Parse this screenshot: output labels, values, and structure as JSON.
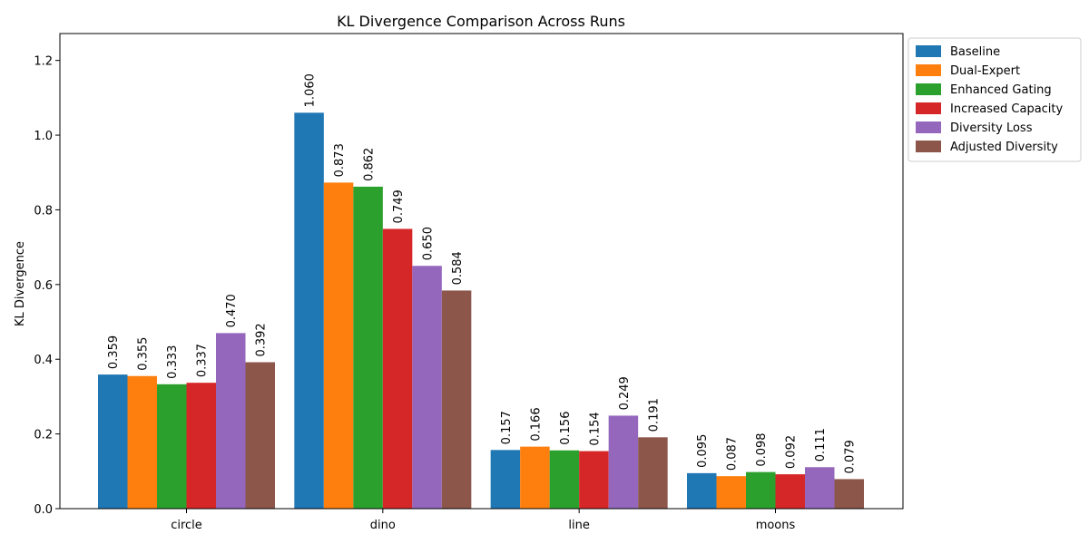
{
  "chart_data": {
    "type": "bar",
    "title": "KL Divergence Comparison Across Runs",
    "xlabel": "",
    "ylabel": "KL Divergence",
    "ylim": [
      0,
      1.272
    ],
    "yticks": [
      "0.0",
      "0.2",
      "0.4",
      "0.6",
      "0.8",
      "1.0",
      "1.2"
    ],
    "categories": [
      "circle",
      "dino",
      "line",
      "moons"
    ],
    "legend_position": "outside-top-right",
    "grid": false,
    "series": [
      {
        "name": "Baseline",
        "color": "#1f77b4",
        "values": [
          0.359,
          1.06,
          0.157,
          0.095
        ],
        "labels": [
          "0.359",
          "1.060",
          "0.157",
          "0.095"
        ]
      },
      {
        "name": "Dual-Expert",
        "color": "#ff7f0e",
        "values": [
          0.355,
          0.873,
          0.166,
          0.087
        ],
        "labels": [
          "0.355",
          "0.873",
          "0.166",
          "0.087"
        ]
      },
      {
        "name": "Enhanced Gating",
        "color": "#2ca02c",
        "values": [
          0.333,
          0.862,
          0.156,
          0.098
        ],
        "labels": [
          "0.333",
          "0.862",
          "0.156",
          "0.098"
        ]
      },
      {
        "name": "Increased Capacity",
        "color": "#d62728",
        "values": [
          0.337,
          0.749,
          0.154,
          0.092
        ],
        "labels": [
          "0.337",
          "0.749",
          "0.154",
          "0.092"
        ]
      },
      {
        "name": "Diversity Loss",
        "color": "#9467bd",
        "values": [
          0.47,
          0.65,
          0.249,
          0.111
        ],
        "labels": [
          "0.470",
          "0.650",
          "0.249",
          "0.111"
        ]
      },
      {
        "name": "Adjusted Diversity",
        "color": "#8c564b",
        "values": [
          0.392,
          0.584,
          0.191,
          0.079
        ],
        "labels": [
          "0.392",
          "0.584",
          "0.191",
          "0.079"
        ]
      }
    ]
  }
}
